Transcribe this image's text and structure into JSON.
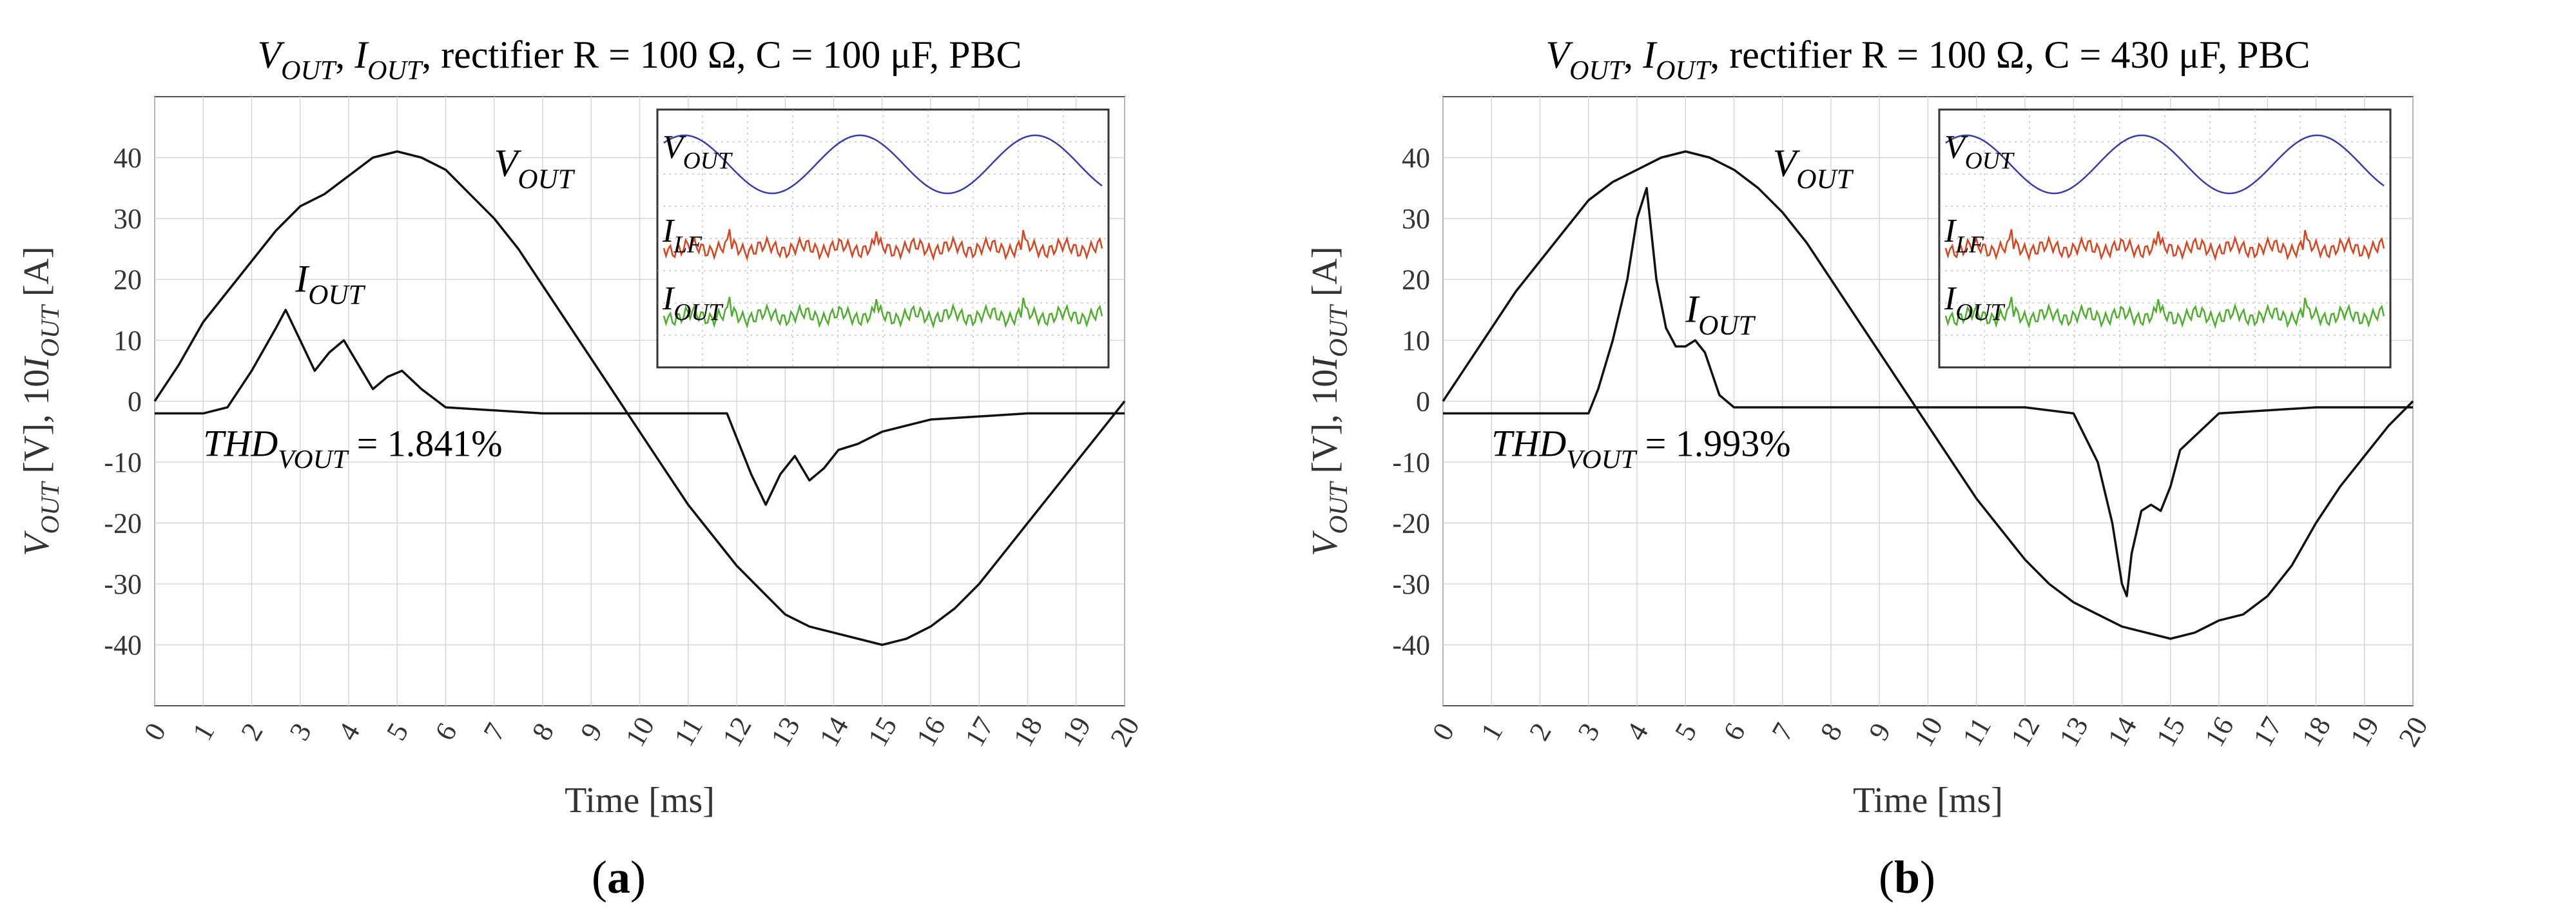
{
  "chart_data": [
    {
      "id": "a",
      "type": "line",
      "title": "VOUT, IOUT, rectifier R = 100 Ω, C = 100 μF, PBC",
      "title_parts": {
        "v": "V",
        "v_sub": "OUT",
        "i": "I",
        "i_sub": "OUT",
        "rest": "rectifier R = 100 Ω, C = 100 μF, PBC"
      },
      "xlabel": "Time [ms]",
      "ylabel": "VOUT [V], 10IOUT [A]",
      "xlim": [
        0,
        20
      ],
      "ylim": [
        -50,
        50
      ],
      "x_ticks": [
        0,
        1,
        2,
        3,
        4,
        5,
        6,
        7,
        8,
        9,
        10,
        11,
        12,
        13,
        14,
        15,
        16,
        17,
        18,
        19,
        20
      ],
      "y_ticks": [
        -40,
        -30,
        -20,
        -10,
        0,
        10,
        20,
        30,
        40
      ],
      "grid": true,
      "series": [
        {
          "name": "VOUT",
          "x": [
            0,
            0.5,
            1,
            1.5,
            2,
            2.5,
            3,
            3.5,
            4,
            4.5,
            5,
            5.5,
            6,
            6.5,
            7,
            7.5,
            8,
            8.5,
            9,
            9.5,
            10,
            10.5,
            11,
            11.5,
            12,
            12.5,
            13,
            13.5,
            14,
            14.5,
            15,
            15.5,
            16,
            16.5,
            17,
            17.5,
            18,
            18.5,
            19,
            19.5,
            20
          ],
          "y": [
            0,
            6,
            13,
            18,
            23,
            28,
            32,
            34,
            37,
            40,
            41,
            40,
            38,
            34,
            30,
            25,
            19,
            13,
            7,
            1,
            -5,
            -11,
            -17,
            -22,
            -27,
            -31,
            -35,
            -37,
            -38,
            -39,
            -40,
            -39,
            -37,
            -34,
            -30,
            -25,
            -20,
            -15,
            -10,
            -5,
            0
          ]
        },
        {
          "name": "10·IOUT",
          "x": [
            0,
            1,
            1.5,
            2,
            2.5,
            2.7,
            3,
            3.3,
            3.6,
            3.9,
            4.2,
            4.5,
            4.8,
            5.1,
            5.5,
            6,
            8,
            10,
            11,
            11.8,
            12,
            12.3,
            12.6,
            12.9,
            13.2,
            13.5,
            13.8,
            14.1,
            14.5,
            15,
            15.5,
            16,
            18,
            20
          ],
          "y": [
            -2,
            -2,
            -1,
            5,
            12,
            15,
            10,
            5,
            8,
            10,
            6,
            2,
            4,
            5,
            2,
            -1,
            -2,
            -2,
            -2,
            -2,
            -6,
            -12,
            -17,
            -12,
            -9,
            -13,
            -11,
            -8,
            -7,
            -5,
            -4,
            -3,
            -2,
            -2
          ]
        }
      ],
      "annotations": {
        "vout_label": {
          "main": "V",
          "sub": "OUT"
        },
        "iout_label": {
          "main": "I",
          "sub": "OUT"
        },
        "thd_label": {
          "main": "THD",
          "sub": "VOUT",
          "value": " = 1.841%"
        }
      },
      "inset": {
        "traces": [
          {
            "label_main": "V",
            "label_sub": "OUT",
            "color": "#3a3ab0"
          },
          {
            "label_main": "I",
            "label_sub": "LF",
            "color": "#e0401a"
          },
          {
            "label_main": "I",
            "label_sub": "OUT",
            "color": "#4caf2a"
          }
        ]
      },
      "figure_label": "a"
    },
    {
      "id": "b",
      "type": "line",
      "title": "VOUT, IOUT, rectifier R = 100 Ω, C = 430 μF, PBC",
      "title_parts": {
        "v": "V",
        "v_sub": "OUT",
        "i": "I",
        "i_sub": "OUT",
        "rest": "rectifier R = 100 Ω, C = 430 μF, PBC"
      },
      "xlabel": "Time [ms]",
      "ylabel": "VOUT [V], 10IOUT [A]",
      "xlim": [
        0,
        20
      ],
      "ylim": [
        -50,
        50
      ],
      "x_ticks": [
        0,
        1,
        2,
        3,
        4,
        5,
        6,
        7,
        8,
        9,
        10,
        11,
        12,
        13,
        14,
        15,
        16,
        17,
        18,
        19,
        20
      ],
      "y_ticks": [
        -40,
        -30,
        -20,
        -10,
        0,
        10,
        20,
        30,
        40
      ],
      "grid": true,
      "series": [
        {
          "name": "VOUT",
          "x": [
            0,
            0.5,
            1,
            1.5,
            2,
            2.5,
            3,
            3.5,
            4,
            4.5,
            5,
            5.5,
            6,
            6.5,
            7,
            7.5,
            8,
            8.5,
            9,
            9.5,
            10,
            10.5,
            11,
            11.5,
            12,
            12.5,
            13,
            13.5,
            14,
            14.5,
            15,
            15.5,
            16,
            16.5,
            17,
            17.5,
            18,
            18.5,
            19,
            19.5,
            20
          ],
          "y": [
            0,
            6,
            12,
            18,
            23,
            28,
            33,
            36,
            38,
            40,
            41,
            40,
            38,
            35,
            31,
            26,
            20,
            14,
            8,
            2,
            -4,
            -10,
            -16,
            -21,
            -26,
            -30,
            -33,
            -35,
            -37,
            -38,
            -39,
            -38,
            -36,
            -35,
            -32,
            -27,
            -20,
            -14,
            -9,
            -4,
            0
          ]
        },
        {
          "name": "10·IOUT",
          "x": [
            0,
            2,
            3,
            3.2,
            3.5,
            3.8,
            4,
            4.2,
            4.4,
            4.6,
            4.8,
            5,
            5.2,
            5.4,
            5.7,
            6,
            8,
            10,
            12,
            13,
            13.5,
            13.8,
            14,
            14.1,
            14.2,
            14.4,
            14.6,
            14.8,
            15,
            15.2,
            16,
            18,
            20
          ],
          "y": [
            -2,
            -2,
            -2,
            2,
            10,
            20,
            30,
            35,
            20,
            12,
            9,
            9,
            10,
            8,
            1,
            -1,
            -1,
            -1,
            -1,
            -2,
            -10,
            -20,
            -30,
            -32,
            -25,
            -18,
            -17,
            -18,
            -14,
            -8,
            -2,
            -1,
            -1
          ]
        }
      ],
      "annotations": {
        "vout_label": {
          "main": "V",
          "sub": "OUT"
        },
        "iout_label": {
          "main": "I",
          "sub": "OUT"
        },
        "thd_label": {
          "main": "THD",
          "sub": "VOUT",
          "value": " = 1.993%"
        }
      },
      "inset": {
        "traces": [
          {
            "label_main": "V",
            "label_sub": "OUT",
            "color": "#3a3ab0"
          },
          {
            "label_main": "I",
            "label_sub": "LF",
            "color": "#e0401a"
          },
          {
            "label_main": "I",
            "label_sub": "OUT",
            "color": "#4caf2a"
          }
        ]
      },
      "figure_label": "b"
    }
  ]
}
